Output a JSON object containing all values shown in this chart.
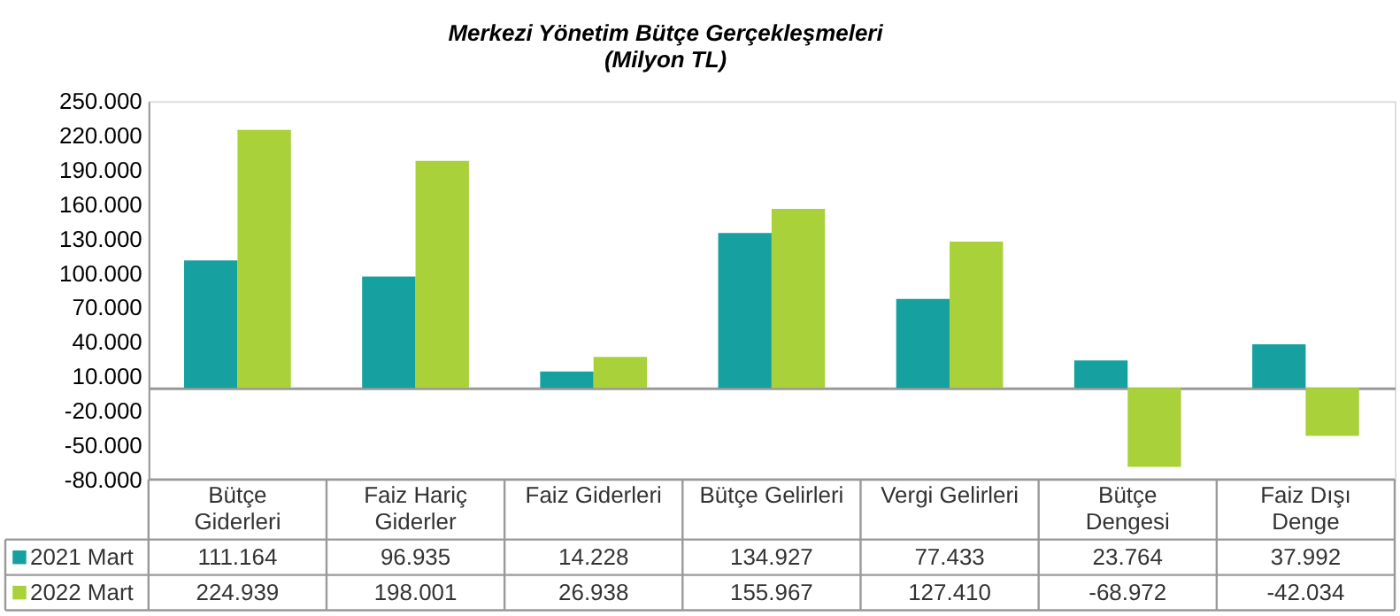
{
  "chart_data": {
    "type": "bar",
    "title": "Merkezi Yönetim Bütçe Gerçekleşmeleri",
    "subtitle": "(Milyon TL)",
    "categories": [
      "Bütçe\nGiderleri",
      "Faiz Hariç\nGiderler",
      "Faiz Giderleri",
      "Bütçe Gelirleri",
      "Vergi Gelirleri",
      "Bütçe\nDengesi",
      "Faiz Dışı\nDenge"
    ],
    "series": [
      {
        "name": "2021  Mart",
        "color": "#17a0a0",
        "values": [
          111164,
          96935,
          14228,
          134927,
          77433,
          23764,
          37992
        ],
        "value_labels": [
          "111.164",
          "96.935",
          "14.228",
          "134.927",
          "77.433",
          "23.764",
          "37.992"
        ]
      },
      {
        "name": "2022  Mart",
        "color": "#a8d13a",
        "values": [
          224939,
          198001,
          26938,
          155967,
          127410,
          -68972,
          -42034
        ],
        "value_labels": [
          "224.939",
          "198.001",
          "26.938",
          "155.967",
          "127.410",
          "-68.972",
          "-42.034"
        ]
      }
    ],
    "ylim": [
      -80000,
      250000
    ],
    "yticks": [
      {
        "value": -80000,
        "label": "-80.000"
      },
      {
        "value": -50000,
        "label": "-50.000"
      },
      {
        "value": -20000,
        "label": "-20.000"
      },
      {
        "value": 10000,
        "label": "10.000"
      },
      {
        "value": 40000,
        "label": "40.000"
      },
      {
        "value": 70000,
        "label": "70.000"
      },
      {
        "value": 100000,
        "label": "100.000"
      },
      {
        "value": 130000,
        "label": "130.000"
      },
      {
        "value": 160000,
        "label": "160.000"
      },
      {
        "value": 190000,
        "label": "190.000"
      },
      {
        "value": 220000,
        "label": "220.000"
      },
      {
        "value": 250000,
        "label": "250.000"
      }
    ],
    "grid": false,
    "legend": "bottom left"
  }
}
